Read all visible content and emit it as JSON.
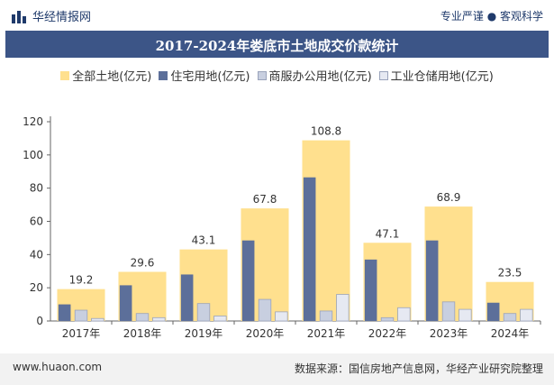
{
  "header": {
    "brand": "华经情报网",
    "tagline": "专业严谨 ● 客观科学",
    "brand_icon": "bar-chart-logo-icon"
  },
  "legend": {
    "total": "全部土地(亿元)",
    "residential": "住宅用地(亿元)",
    "commercial": "商服办公用地(亿元)",
    "industrial": "工业仓储用地(亿元)"
  },
  "footer": {
    "website": "www.huaon.com",
    "source": "数据来源：国信房地产信息网，华经产业研究院整理"
  },
  "colors": {
    "title_bg": "#3c5587",
    "total": "#ffe08e",
    "residential": "#5c6f9a",
    "commercial": "#c8cfe0",
    "industrial": "#e6e9f2"
  },
  "chart_data": {
    "type": "bar",
    "title": "2017-2024年娄底市土地成交价款统计",
    "categories": [
      "2017年",
      "2018年",
      "2019年",
      "2020年",
      "2021年",
      "2022年",
      "2023年",
      "2024年"
    ],
    "series": [
      {
        "name": "全部土地(亿元)",
        "values": [
          19.2,
          29.6,
          43.1,
          67.8,
          108.8,
          47.1,
          68.9,
          23.5
        ],
        "labels": [
          "19.2",
          "29.6",
          "43.1",
          "67.8",
          "108.8",
          "47.1",
          "68.9",
          "23.5"
        ]
      },
      {
        "name": "住宅用地(亿元)",
        "values": [
          10,
          21.5,
          28,
          48.5,
          86.5,
          37,
          48.5,
          11
        ]
      },
      {
        "name": "商服办公用地(亿元)",
        "values": [
          6.5,
          4.5,
          10.5,
          13,
          6,
          2,
          11.5,
          4.5
        ]
      },
      {
        "name": "工业仓储用地(亿元)",
        "values": [
          1.5,
          2,
          3,
          5.5,
          16,
          8,
          7,
          7
        ]
      }
    ],
    "yticks": [
      "0",
      "20",
      "40",
      "60",
      "80",
      "100",
      "120"
    ],
    "ylim": [
      0,
      120
    ],
    "grid": false
  }
}
